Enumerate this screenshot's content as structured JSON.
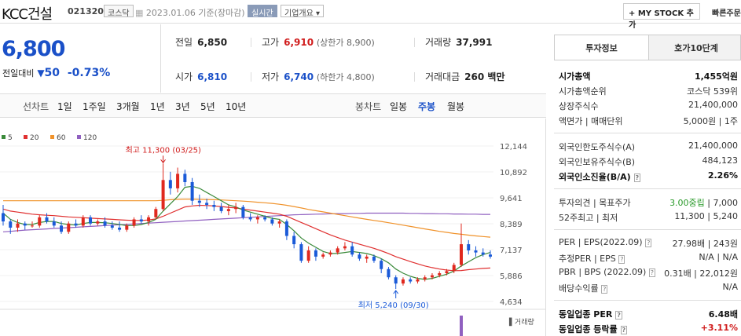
{
  "header": {
    "company": "KCC건설",
    "code": "021320",
    "market": "코스닥",
    "date_text": "2023.01.06  기준(장마감)",
    "realtime_label": "실시간",
    "company_info_label": "기업개요 ▾",
    "mystock_label": "+ MY STOCK 추가",
    "quick_view_label": "빠른주문"
  },
  "price": {
    "current": "6,800",
    "change_label": "전일대비",
    "change_icon": "down-triangle-icon",
    "change_amount": "50",
    "change_pct": "-0.73%"
  },
  "stats": {
    "prev_close_label": "전일",
    "prev_close": "6,850",
    "high_label": "고가",
    "high": "6,910",
    "upper_limit": "(상한가 8,900)",
    "volume_label": "거래량",
    "volume": "37,991",
    "open_label": "시가",
    "open": "6,810",
    "low_label": "저가",
    "low": "6,740",
    "lower_limit": "(하한가 4,800)",
    "value_label": "거래대금",
    "value": "260 백만"
  },
  "period_bar": {
    "line_label": "선차트",
    "periods": [
      "1일",
      "1주일",
      "3개월",
      "1년",
      "3년",
      "5년",
      "10년"
    ],
    "candle_label": "봉차트",
    "candles": [
      "일봉",
      "주봉",
      "월봉"
    ],
    "active_candle": "주봉"
  },
  "chart_data": {
    "type": "candlestick",
    "legend": [
      {
        "name": "5",
        "color": "#3a8a3a"
      },
      {
        "name": "20",
        "color": "#e03030"
      },
      {
        "name": "60",
        "color": "#f0922a"
      },
      {
        "name": "120",
        "color": "#9060c0"
      }
    ],
    "y_ticks": [
      "12,144",
      "10,892",
      "9,641",
      "8,389",
      "7,137",
      "5,886",
      "4,634"
    ],
    "ylim": [
      4634,
      12144
    ],
    "annotation_high": "최고 11,300 (03/25)",
    "annotation_low": "최저 5,240 (09/30)",
    "volume_label": "거래량",
    "candles": [
      [
        8.9,
        9.3,
        8.3,
        8.5
      ],
      [
        8.5,
        8.6,
        7.9,
        8.2
      ],
      [
        8.2,
        8.6,
        8.0,
        8.4
      ],
      [
        8.4,
        8.5,
        8.1,
        8.3
      ],
      [
        8.3,
        8.5,
        8.2,
        8.3
      ],
      [
        8.3,
        8.8,
        8.2,
        8.7
      ],
      [
        8.7,
        8.9,
        8.4,
        8.5
      ],
      [
        8.5,
        8.7,
        8.2,
        8.3
      ],
      [
        8.3,
        8.5,
        7.9,
        8.0
      ],
      [
        8.0,
        8.5,
        7.9,
        8.4
      ],
      [
        8.4,
        8.6,
        8.2,
        8.3
      ],
      [
        8.3,
        8.8,
        8.2,
        8.7
      ],
      [
        8.7,
        8.8,
        8.3,
        8.4
      ],
      [
        8.4,
        8.6,
        8.3,
        8.5
      ],
      [
        8.5,
        8.7,
        8.2,
        8.3
      ],
      [
        8.3,
        8.5,
        8.1,
        8.2
      ],
      [
        8.2,
        8.5,
        8.0,
        8.1
      ],
      [
        8.1,
        8.4,
        8.0,
        8.3
      ],
      [
        8.3,
        8.7,
        8.2,
        8.6
      ],
      [
        8.6,
        8.8,
        8.4,
        8.5
      ],
      [
        8.5,
        8.8,
        8.3,
        8.7
      ],
      [
        8.7,
        9.2,
        8.6,
        9.1
      ],
      [
        9.1,
        11.3,
        9.0,
        10.5
      ],
      [
        10.5,
        10.9,
        9.8,
        10.1
      ],
      [
        10.1,
        11.1,
        9.9,
        10.8
      ],
      [
        10.8,
        11.0,
        10.2,
        10.4
      ],
      [
        10.4,
        10.6,
        9.3,
        9.5
      ],
      [
        9.5,
        9.8,
        9.2,
        9.4
      ],
      [
        9.4,
        9.6,
        9.1,
        9.3
      ],
      [
        9.3,
        9.5,
        9.0,
        9.2
      ],
      [
        9.2,
        9.4,
        8.9,
        9.0
      ],
      [
        9.0,
        9.3,
        8.8,
        9.1
      ],
      [
        9.1,
        9.4,
        8.9,
        9.2
      ],
      [
        9.2,
        9.3,
        8.6,
        8.7
      ],
      [
        8.7,
        8.9,
        8.5,
        8.6
      ],
      [
        8.6,
        8.8,
        8.4,
        8.7
      ],
      [
        8.7,
        8.8,
        8.5,
        8.6
      ],
      [
        8.6,
        8.7,
        8.3,
        8.4
      ],
      [
        8.4,
        8.6,
        8.2,
        8.5
      ],
      [
        8.5,
        8.6,
        7.6,
        7.8
      ],
      [
        7.8,
        8.0,
        7.2,
        7.4
      ],
      [
        7.4,
        7.5,
        6.5,
        6.6
      ],
      [
        6.6,
        7.3,
        6.5,
        7.1
      ],
      [
        7.1,
        7.2,
        6.6,
        6.8
      ],
      [
        6.8,
        7.0,
        6.7,
        6.9
      ],
      [
        6.9,
        7.1,
        6.8,
        7.0
      ],
      [
        7.0,
        7.3,
        6.9,
        7.2
      ],
      [
        7.2,
        7.5,
        7.1,
        7.3
      ],
      [
        7.3,
        7.5,
        6.8,
        6.9
      ],
      [
        6.9,
        7.0,
        6.6,
        6.7
      ],
      [
        6.7,
        6.9,
        6.5,
        6.8
      ],
      [
        6.8,
        6.9,
        6.5,
        6.6
      ],
      [
        6.6,
        6.7,
        6.0,
        6.2
      ],
      [
        6.2,
        6.3,
        5.7,
        5.8
      ],
      [
        5.8,
        5.9,
        5.24,
        5.5
      ],
      [
        5.5,
        5.8,
        5.4,
        5.7
      ],
      [
        5.7,
        5.8,
        5.5,
        5.6
      ],
      [
        5.6,
        5.8,
        5.5,
        5.7
      ],
      [
        5.7,
        5.9,
        5.6,
        5.8
      ],
      [
        5.8,
        6.0,
        5.7,
        5.9
      ],
      [
        5.9,
        6.1,
        5.8,
        6.0
      ],
      [
        6.0,
        6.2,
        5.9,
        6.1
      ],
      [
        6.1,
        6.5,
        6.0,
        6.4
      ],
      [
        6.4,
        8.4,
        6.3,
        7.4
      ],
      [
        7.4,
        7.6,
        6.9,
        7.1
      ],
      [
        7.1,
        7.3,
        6.8,
        7.0
      ],
      [
        7.0,
        7.2,
        6.8,
        6.9
      ],
      [
        6.9,
        7.1,
        6.7,
        6.8
      ]
    ],
    "ma5": [
      8.9,
      8.6,
      8.45,
      8.35,
      8.35,
      8.45,
      8.5,
      8.5,
      8.4,
      8.35,
      8.33,
      8.4,
      8.45,
      8.45,
      8.44,
      8.4,
      8.35,
      8.3,
      8.3,
      8.35,
      8.45,
      8.6,
      9.0,
      9.35,
      9.7,
      10.15,
      10.2,
      10.1,
      9.9,
      9.7,
      9.5,
      9.3,
      9.2,
      9.05,
      8.95,
      8.85,
      8.75,
      8.65,
      8.6,
      8.35,
      8.05,
      7.7,
      7.45,
      7.25,
      7.05,
      6.95,
      6.95,
      7.0,
      7.05,
      7.0,
      6.95,
      6.85,
      6.7,
      6.5,
      6.2,
      6.0,
      5.85,
      5.75,
      5.7,
      5.75,
      5.85,
      5.95,
      6.1,
      6.35,
      6.55,
      6.75,
      6.9,
      7.0
    ],
    "ma20": [
      9.1,
      9.0,
      8.95,
      8.9,
      8.85,
      8.82,
      8.8,
      8.78,
      8.75,
      8.72,
      8.7,
      8.68,
      8.66,
      8.64,
      8.62,
      8.6,
      8.58,
      8.56,
      8.55,
      8.55,
      8.57,
      8.62,
      8.75,
      8.9,
      9.05,
      9.2,
      9.25,
      9.28,
      9.27,
      9.25,
      9.22,
      9.18,
      9.15,
      9.1,
      9.05,
      9.0,
      8.95,
      8.9,
      8.85,
      8.75,
      8.6,
      8.45,
      8.3,
      8.15,
      8.0,
      7.85,
      7.72,
      7.6,
      7.5,
      7.4,
      7.3,
      7.2,
      7.08,
      6.95,
      6.8,
      6.68,
      6.56,
      6.45,
      6.35,
      6.27,
      6.2,
      6.15,
      6.12,
      6.13,
      6.17,
      6.2,
      6.23,
      6.25
    ],
    "ma60": [
      9.5,
      9.5,
      9.5,
      9.5,
      9.5,
      9.5,
      9.5,
      9.5,
      9.5,
      9.5,
      9.5,
      9.5,
      9.5,
      9.5,
      9.5,
      9.5,
      9.5,
      9.5,
      9.5,
      9.5,
      9.5,
      9.5,
      9.52,
      9.55,
      9.57,
      9.58,
      9.58,
      9.57,
      9.56,
      9.55,
      9.54,
      9.52,
      9.5,
      9.48,
      9.46,
      9.43,
      9.4,
      9.37,
      9.33,
      9.28,
      9.22,
      9.15,
      9.08,
      9.02,
      8.96,
      8.9,
      8.84,
      8.78,
      8.72,
      8.66,
      8.6,
      8.55,
      8.5,
      8.44,
      8.38,
      8.32,
      8.26,
      8.2,
      8.14,
      8.08,
      8.02,
      7.97,
      7.92,
      7.88,
      7.84,
      7.8,
      7.77,
      7.74
    ],
    "ma120": [
      8.0,
      8.02,
      8.05,
      8.08,
      8.1,
      8.12,
      8.14,
      8.16,
      8.18,
      8.2,
      8.22,
      8.24,
      8.26,
      8.28,
      8.3,
      8.32,
      8.34,
      8.36,
      8.38,
      8.4,
      8.42,
      8.44,
      8.46,
      8.48,
      8.5,
      8.52,
      8.54,
      8.56,
      8.58,
      8.6,
      8.62,
      8.64,
      8.66,
      8.68,
      8.7,
      8.72,
      8.74,
      8.76,
      8.78,
      8.8,
      8.82,
      8.83,
      8.84,
      8.85,
      8.86,
      8.87,
      8.88,
      8.88,
      8.89,
      8.89,
      8.9,
      8.9,
      8.9,
      8.9,
      8.9,
      8.9,
      8.89,
      8.89,
      8.88,
      8.88,
      8.87,
      8.87,
      8.86,
      8.86,
      8.85,
      8.85,
      8.84,
      8.84
    ]
  },
  "side": {
    "tab_active": "투자정보",
    "tab_other": "호가10단계",
    "rows": {
      "mcap_label": "시가총액",
      "mcap": "1,455억원",
      "mcap_rank_label": "시가총액순위",
      "mcap_rank": "코스닥 539위",
      "shares_label": "상장주식수",
      "shares": "21,400,000",
      "par_label": "액면가 | 매매단위",
      "par": "5,000원 | 1주",
      "foreign_limit_label": "외국인한도주식수(A)",
      "foreign_limit": "21,400,000",
      "foreign_hold_label": "외국인보유주식수(B)",
      "foreign_hold": "484,123",
      "foreign_rate_label": "외국인소진율(B/A)",
      "foreign_rate": "2.26%",
      "opinion_label": "투자의견 | 목표주가",
      "opinion": "3.00중립",
      "target": "7,000",
      "w52_label": "52주최고 | 최저",
      "w52": "11,300 | 5,240",
      "per_label": "PER | EPS(2022.09)",
      "per": "27.98배 | 243원",
      "eper_label": "추정PER | EPS",
      "eper": "N/A | N/A",
      "pbr_label": "PBR | BPS (2022.09)",
      "pbr": "0.31배 | 22,012원",
      "div_label": "배당수익률",
      "div": "N/A",
      "industry_per_label": "동일업종 PER",
      "industry_per": "6.48배",
      "industry_chg_label": "동일업종 등락률",
      "industry_chg": "+3.11%"
    }
  }
}
